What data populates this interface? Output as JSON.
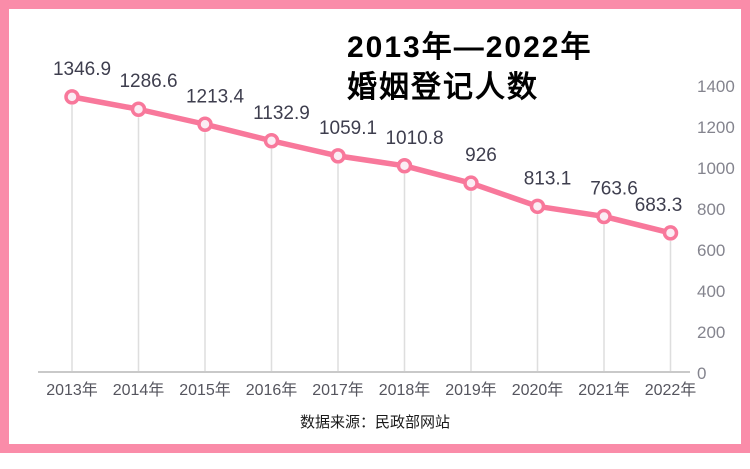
{
  "card": {
    "title": "2013年—2022年\n婚姻登记人数",
    "source": "数据来源：民政部网站"
  },
  "colors": {
    "frame_pink": "#FA8CA9",
    "line_pink": "#F8789B",
    "marker_fill": "#FBEDF4",
    "value_label": "#3E3E4E",
    "ytick_gray": "#84848E",
    "xtick_gray": "#55555E",
    "dropline_gray": "#DEDEDE",
    "axis_gray": "#C9C9C9"
  },
  "chart_data": {
    "type": "line",
    "title": "2013年—2022年婚姻登记人数",
    "categories": [
      "2013年",
      "2014年",
      "2015年",
      "2016年",
      "2017年",
      "2018年",
      "2019年",
      "2020年",
      "2021年",
      "2022年"
    ],
    "values": [
      1346.9,
      1286.6,
      1213.4,
      1132.9,
      1059.1,
      1010.8,
      926,
      813.1,
      763.6,
      683.3
    ],
    "yticks": [
      1400,
      1200,
      1000,
      800,
      600,
      400,
      200,
      0
    ],
    "ylim": [
      0,
      1400
    ],
    "xlabel": "",
    "ylabel": "",
    "y_axis_side": "right",
    "grid": "vertical-drop-lines",
    "legend": "none",
    "data_labels": "above-points"
  }
}
